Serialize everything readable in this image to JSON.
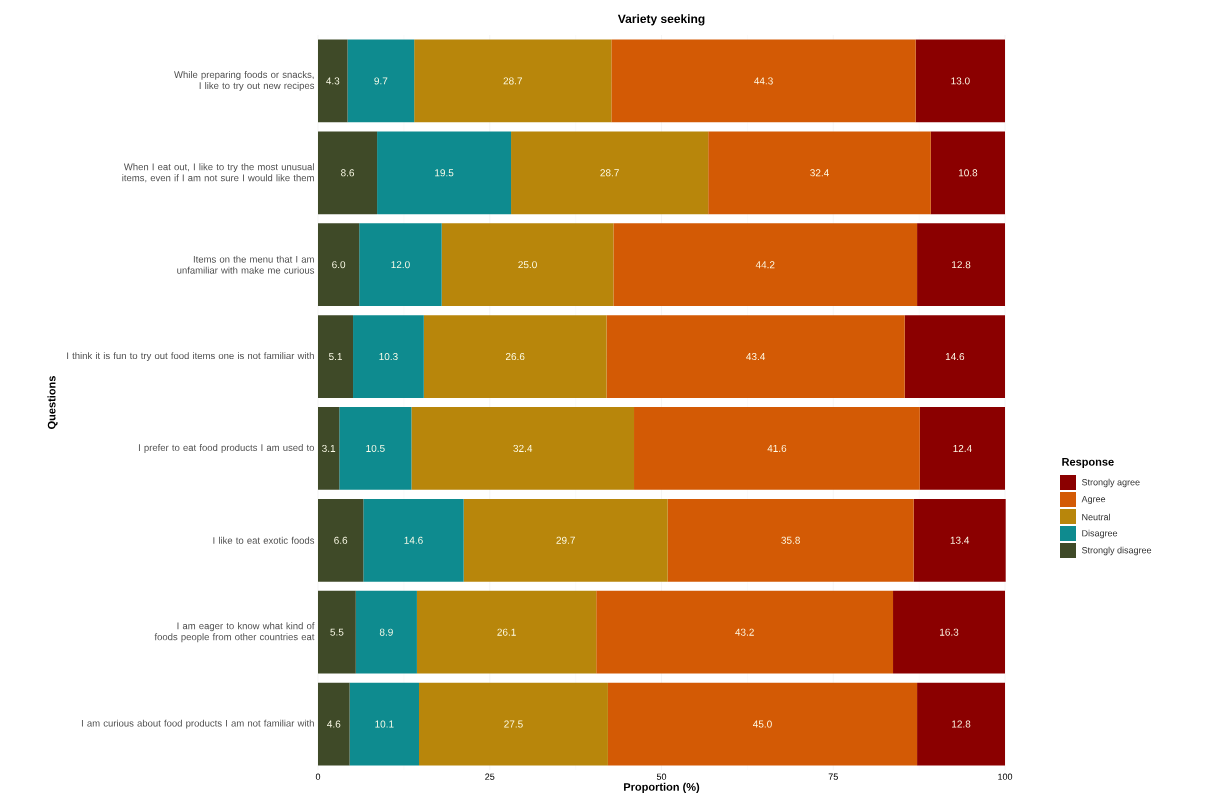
{
  "chart_data": {
    "type": "bar",
    "orientation": "horizontal",
    "stacked": true,
    "title": "Variety seeking",
    "xlabel": "Proportion (%)",
    "ylabel": "Questions",
    "legend_title": "Response",
    "categories": [
      "While preparing foods or snacks, I like to try out new recipes",
      "When I eat out, I like to try the most unusual items, even if I am not sure I would like them",
      "Items on the menu that I am unfamiliar with make me curious",
      "I think it is fun to try out food items one is not familiar with",
      "I prefer to eat food products I am used to",
      "I like to eat exotic foods",
      "I am eager to know what kind of foods people from other countries eat",
      "I am curious about food products I am not familiar with"
    ],
    "series": [
      {
        "name": "Strongly disagree",
        "color": "#3f4a28",
        "values": [
          4.3,
          8.6,
          6.0,
          5.1,
          3.1,
          6.6,
          5.5,
          4.6
        ],
        "value_labels": [
          "4.3",
          "8.6",
          "6.0",
          "5.1",
          "3.1",
          "6.6",
          "5.5",
          "4.6"
        ]
      },
      {
        "name": "Disagree",
        "color": "#0e8b8f",
        "values": [
          9.7,
          19.5,
          12.0,
          10.3,
          10.5,
          14.6,
          8.9,
          10.1
        ],
        "value_labels": [
          "9.7",
          "19.5",
          "12.0",
          "10.3",
          "10.5",
          "14.6",
          "8.9",
          "10.1"
        ]
      },
      {
        "name": "Neutral",
        "color": "#b8860b",
        "values": [
          28.7,
          28.7,
          25.0,
          26.6,
          32.4,
          29.7,
          26.1,
          27.5
        ],
        "value_labels": [
          "28.7",
          "28.7",
          "25.0",
          "26.6",
          "32.4",
          "29.7",
          "26.1",
          "27.5"
        ]
      },
      {
        "name": "Agree",
        "color": "#d35a05",
        "values": [
          44.3,
          32.4,
          44.2,
          43.4,
          41.6,
          35.8,
          43.2,
          45.0
        ],
        "value_labels": [
          "44.3",
          "32.4",
          "44.2",
          "43.4",
          "41.6",
          "35.8",
          "43.2",
          "45.0"
        ]
      },
      {
        "name": "Strongly agree",
        "color": "#8b0000",
        "values": [
          13.0,
          10.8,
          12.8,
          14.6,
          12.4,
          13.4,
          16.3,
          12.8
        ],
        "value_labels": [
          "13.0",
          "10.8",
          "12.8",
          "14.6",
          "12.4",
          "13.4",
          "16.3",
          "12.8"
        ]
      }
    ],
    "xlim": [
      0,
      100
    ],
    "xticks": [
      0,
      25,
      50,
      75,
      100
    ],
    "grid": true,
    "legend": "right"
  }
}
